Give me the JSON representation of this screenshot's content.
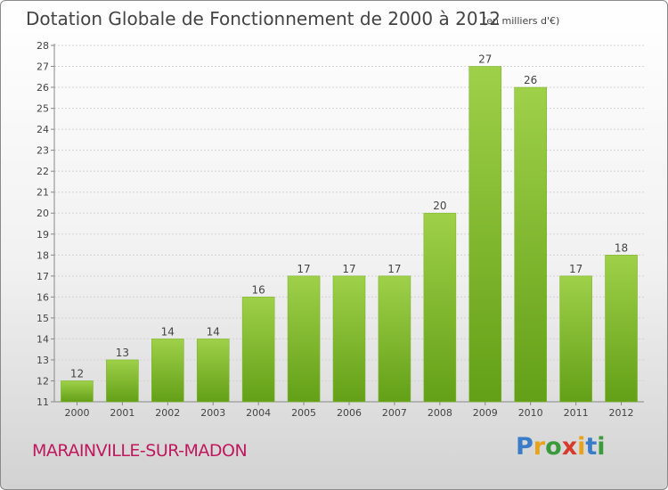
{
  "header": {
    "title": "Dotation Globale de Fonctionnement de 2000 à 2012",
    "unit": "(en milliers d'€)"
  },
  "footer": {
    "city": "MARAINVILLE-SUR-MADON",
    "logo": {
      "text": "Proxiti",
      "letter_colors": [
        "#3a7cc8",
        "#e8a21c",
        "#3a9a3c",
        "#d63a2a",
        "#e8a21c",
        "#3a7cc8",
        "#3a9a3c"
      ]
    }
  },
  "colors": {
    "bar_top": "#9fd04a",
    "bar_bottom": "#63a017",
    "text": "#444444",
    "city": "#c0185d"
  },
  "chart_data": {
    "type": "bar",
    "title": "Dotation Globale de Fonctionnement de 2000 à 2012",
    "subtitle": "(en milliers d'€)",
    "categories": [
      "2000",
      "2001",
      "2002",
      "2003",
      "2004",
      "2005",
      "2006",
      "2007",
      "2008",
      "2009",
      "2010",
      "2011",
      "2012"
    ],
    "values": [
      12,
      13,
      14,
      14,
      16,
      17,
      17,
      17,
      20,
      27,
      26,
      17,
      18
    ],
    "ylim": [
      11,
      28
    ],
    "yticks": [
      11,
      12,
      13,
      14,
      15,
      16,
      17,
      18,
      19,
      20,
      21,
      22,
      23,
      24,
      25,
      26,
      27,
      28
    ],
    "grid": true,
    "data_labels": true
  }
}
